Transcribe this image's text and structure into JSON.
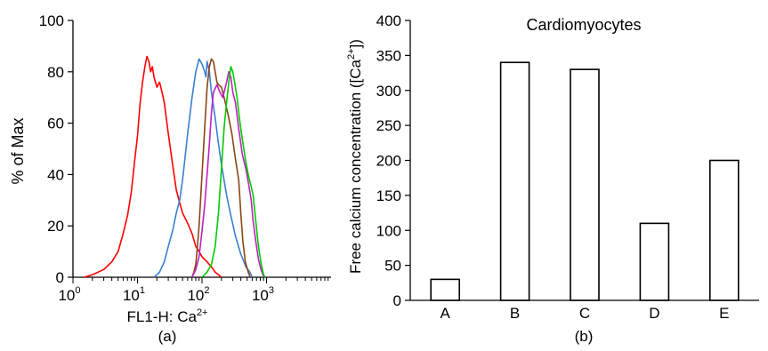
{
  "chart_data": [
    {
      "type": "line",
      "panel_label": "(a)",
      "xlabel": "FL1-H: Ca",
      "xlabel_sup": "2+",
      "ylabel": "% of Max",
      "x_scale": "log",
      "xlim": [
        1,
        10000
      ],
      "ylim": [
        0,
        100
      ],
      "x_ticks": [
        {
          "base": "10",
          "exp": "0"
        },
        {
          "base": "10",
          "exp": "1"
        },
        {
          "base": "10",
          "exp": "2"
        },
        {
          "base": "10",
          "exp": "3"
        }
      ],
      "y_ticks": [
        "0",
        "20",
        "40",
        "60",
        "80",
        "100"
      ],
      "series": [
        {
          "color": "#ff0000",
          "points": [
            [
              1.5,
              0
            ],
            [
              2,
              1
            ],
            [
              3,
              3
            ],
            [
              4,
              6
            ],
            [
              5,
              10
            ],
            [
              6,
              17
            ],
            [
              7,
              24
            ],
            [
              8,
              33
            ],
            [
              9,
              45
            ],
            [
              10,
              55
            ],
            [
              11,
              68
            ],
            [
              12,
              76
            ],
            [
              13,
              82
            ],
            [
              14,
              86
            ],
            [
              15,
              84
            ],
            [
              16,
              80
            ],
            [
              17,
              82
            ],
            [
              18,
              78
            ],
            [
              20,
              74
            ],
            [
              22,
              76
            ],
            [
              24,
              72
            ],
            [
              26,
              68
            ],
            [
              30,
              56
            ],
            [
              35,
              44
            ],
            [
              40,
              34
            ],
            [
              45,
              29
            ],
            [
              50,
              25
            ],
            [
              60,
              21
            ],
            [
              70,
              17
            ],
            [
              80,
              12
            ],
            [
              90,
              10
            ],
            [
              100,
              8
            ],
            [
              120,
              6
            ],
            [
              140,
              4
            ],
            [
              160,
              2
            ],
            [
              180,
              1
            ],
            [
              200,
              0
            ]
          ]
        },
        {
          "color": "#3a7fd5",
          "points": [
            [
              18,
              0
            ],
            [
              22,
              2
            ],
            [
              26,
              6
            ],
            [
              30,
              12
            ],
            [
              35,
              18
            ],
            [
              40,
              25
            ],
            [
              45,
              30
            ],
            [
              50,
              38
            ],
            [
              60,
              56
            ],
            [
              70,
              70
            ],
            [
              80,
              80
            ],
            [
              90,
              85
            ],
            [
              100,
              83
            ],
            [
              110,
              80
            ],
            [
              115,
              78
            ],
            [
              120,
              84
            ],
            [
              130,
              80
            ],
            [
              140,
              72
            ],
            [
              160,
              62
            ],
            [
              180,
              52
            ],
            [
              200,
              44
            ],
            [
              240,
              32
            ],
            [
              280,
              24
            ],
            [
              330,
              16
            ],
            [
              400,
              9
            ],
            [
              480,
              4
            ],
            [
              550,
              2
            ],
            [
              600,
              0
            ]
          ]
        },
        {
          "color": "#8b4513",
          "points": [
            [
              70,
              0
            ],
            [
              75,
              2
            ],
            [
              80,
              5
            ],
            [
              85,
              12
            ],
            [
              90,
              20
            ],
            [
              100,
              40
            ],
            [
              110,
              58
            ],
            [
              120,
              74
            ],
            [
              130,
              82
            ],
            [
              140,
              85
            ],
            [
              150,
              84
            ],
            [
              160,
              80
            ],
            [
              170,
              76
            ],
            [
              180,
              75
            ],
            [
              200,
              74
            ],
            [
              220,
              70
            ],
            [
              250,
              64
            ],
            [
              290,
              56
            ],
            [
              330,
              46
            ],
            [
              370,
              38
            ],
            [
              400,
              25
            ],
            [
              430,
              14
            ],
            [
              470,
              6
            ],
            [
              520,
              2
            ],
            [
              560,
              0
            ]
          ]
        },
        {
          "color": "#c020c0",
          "points": [
            [
              70,
              0
            ],
            [
              80,
              3
            ],
            [
              90,
              8
            ],
            [
              100,
              18
            ],
            [
              110,
              28
            ],
            [
              120,
              40
            ],
            [
              130,
              52
            ],
            [
              140,
              64
            ],
            [
              150,
              72
            ],
            [
              170,
              75
            ],
            [
              190,
              72
            ],
            [
              210,
              70
            ],
            [
              240,
              76
            ],
            [
              260,
              80
            ],
            [
              280,
              78
            ],
            [
              300,
              72
            ],
            [
              330,
              68
            ],
            [
              370,
              58
            ],
            [
              420,
              48
            ],
            [
              480,
              42
            ],
            [
              530,
              36
            ],
            [
              580,
              30
            ],
            [
              620,
              22
            ],
            [
              680,
              14
            ],
            [
              750,
              7
            ],
            [
              820,
              3
            ],
            [
              880,
              1
            ],
            [
              920,
              0
            ]
          ]
        },
        {
          "color": "#00cc00",
          "points": [
            [
              100,
              0
            ],
            [
              120,
              2
            ],
            [
              140,
              5
            ],
            [
              160,
              12
            ],
            [
              180,
              25
            ],
            [
              200,
              42
            ],
            [
              220,
              58
            ],
            [
              240,
              68
            ],
            [
              260,
              76
            ],
            [
              280,
              82
            ],
            [
              300,
              80
            ],
            [
              320,
              76
            ],
            [
              350,
              70
            ],
            [
              380,
              62
            ],
            [
              420,
              54
            ],
            [
              470,
              46
            ],
            [
              520,
              40
            ],
            [
              570,
              36
            ],
            [
              620,
              32
            ],
            [
              680,
              22
            ],
            [
              750,
              12
            ],
            [
              830,
              5
            ],
            [
              900,
              1
            ],
            [
              950,
              0
            ]
          ]
        }
      ]
    },
    {
      "type": "bar",
      "panel_label": "(b)",
      "title": "Cardiomyocytes",
      "ylabel": "Free calcium concentration ([Ca",
      "ylabel_sup": "2+",
      "ylabel_end": "])",
      "categories": [
        "A",
        "B",
        "C",
        "D",
        "E"
      ],
      "values": [
        30,
        340,
        330,
        110,
        200
      ],
      "ylim": [
        0,
        400
      ],
      "y_ticks": [
        "0",
        "50",
        "100",
        "150",
        "200",
        "250",
        "300",
        "350",
        "400"
      ]
    }
  ]
}
